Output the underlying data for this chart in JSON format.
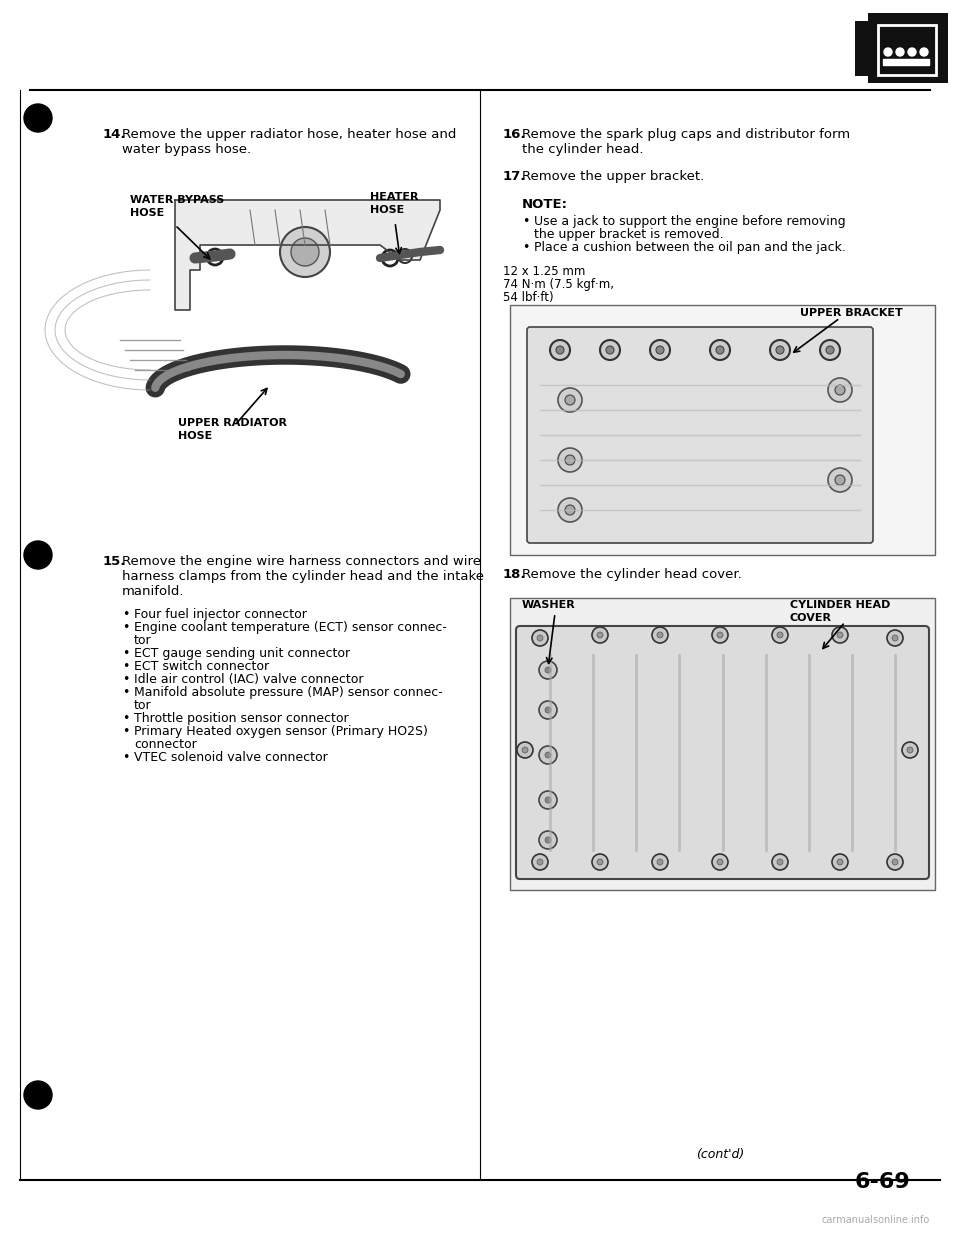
{
  "page_number": "6-69",
  "background_color": "#ffffff",
  "text_color": "#000000",
  "bullet": "•",
  "step14_num": "14.",
  "step14_text1": "Remove the upper radiator hose, heater hose and",
  "step14_text2": "water bypass hose.",
  "step15_num": "15.",
  "step15_text1": "Remove the engine wire harness connectors and wire",
  "step15_text2": "harness clamps from the cylinder head and the intake",
  "step15_text3": "manifold.",
  "step15_bullets": [
    "Four fuel injector connector",
    "Engine coolant temperature (ECT) sensor connec-\ntor",
    "ECT gauge sending unit connector",
    "ECT switch connector",
    "Idle air control (IAC) valve connector",
    "Manifold absolute pressure (MAP) sensor connec-\ntor",
    "Throttle position sensor connector",
    "Primary Heated oxygen sensor (Primary HO2S)\nconnector",
    "VTEC solenoid valve connector"
  ],
  "step16_num": "16.",
  "step16_text1": "Remove the spark plug caps and distributor form",
  "step16_text2": "the cylinder head.",
  "step17_num": "17.",
  "step17_text": "Remove the upper bracket.",
  "note_title": "NOTE:",
  "note_bullets": [
    "Use a jack to support the engine before removing\nthe upper bracket is removed.",
    "Place a cushion between the oil pan and the jack."
  ],
  "torque_text": "12 x 1.25 mm\n74 N·m (7.5 kgf·m,\n54 lbf·ft)",
  "step18_num": "18.",
  "step18_text": "Remove the cylinder head cover.",
  "label_water_bypass_1": "WATER BYPASS",
  "label_water_bypass_2": "HOSE",
  "label_heater_1": "HEATER",
  "label_heater_2": "HOSE",
  "label_upper_radiator_1": "UPPER RADIATOR",
  "label_upper_radiator_2": "HOSE",
  "label_upper_bracket": "UPPER BRACKET",
  "label_washer": "WASHER",
  "label_cyl_head_1": "CYLINDER HEAD",
  "label_cyl_head_2": "COVER",
  "contd": "(cont'd)",
  "watermark": "carmanualsonline.info",
  "watermark_color": "#aaaaaa"
}
